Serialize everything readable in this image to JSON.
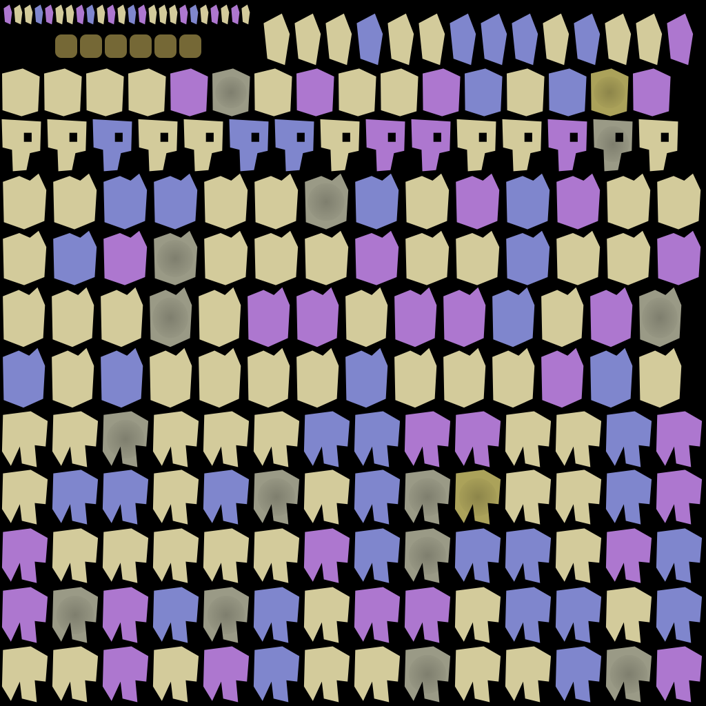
{
  "atlas": {
    "background": "#000000",
    "palette": {
      "beige": "#d3cb9b",
      "blue": "#7f86cd",
      "purple": "#ad77cf",
      "gray": "#9a9a86",
      "olive": "#aba25a",
      "gold": "#8a7a40"
    },
    "legend_swatch_colors": [
      "#7f86cd",
      "#d3cb9b",
      "#ad77cf",
      "#c9b4c8",
      "#7f86cd",
      "#d3cb9b"
    ],
    "blocks": [
      {
        "id": "header-strip",
        "shape": "shard",
        "colors": [
          "purple",
          "beige",
          "beige",
          "blue",
          "purple",
          "beige",
          "beige",
          "purple",
          "blue",
          "beige",
          "purple",
          "beige",
          "blue",
          "purple",
          "beige",
          "beige",
          "beige",
          "purple",
          "blue",
          "beige",
          "purple",
          "beige",
          "purple",
          "beige"
        ]
      },
      {
        "id": "top-right-shards",
        "shape": "shard",
        "colors": [
          "beige",
          "beige",
          "beige",
          "blue",
          "beige",
          "beige",
          "blue",
          "blue",
          "blue",
          "beige",
          "blue",
          "beige",
          "beige",
          "purple"
        ]
      },
      {
        "id": "row-a",
        "shape": "tile",
        "colors": [
          "beige",
          "beige",
          "beige",
          "beige",
          "purple",
          "gray",
          "beige",
          "purple",
          "beige",
          "beige",
          "purple",
          "blue",
          "beige",
          "blue",
          "olive",
          "purple"
        ]
      },
      {
        "id": "row-b",
        "shape": "mask",
        "colors": [
          "beige",
          "beige",
          "blue",
          "beige",
          "beige",
          "blue",
          "blue",
          "beige",
          "purple",
          "purple",
          "beige",
          "beige",
          "purple",
          "gray",
          "beige",
          "beige"
        ]
      },
      {
        "id": "row-c",
        "shape": "head",
        "colors": [
          "beige",
          "beige",
          "blue",
          "blue",
          "beige",
          "beige",
          "gray",
          "blue",
          "beige",
          "purple",
          "blue",
          "purple",
          "beige",
          "beige",
          "purple"
        ]
      },
      {
        "id": "row-d",
        "shape": "head",
        "colors": [
          "beige",
          "blue",
          "purple",
          "gray",
          "beige",
          "beige",
          "beige",
          "purple",
          "beige",
          "beige",
          "blue",
          "beige",
          "beige",
          "purple"
        ]
      },
      {
        "id": "row-e",
        "shape": "head",
        "colors": [
          "beige",
          "beige",
          "beige",
          "gray",
          "beige",
          "purple",
          "purple",
          "beige",
          "purple",
          "purple",
          "blue",
          "beige",
          "purple",
          "gray",
          "purple"
        ]
      },
      {
        "id": "row-f",
        "shape": "head",
        "colors": [
          "blue",
          "beige",
          "blue",
          "beige",
          "beige",
          "beige",
          "beige",
          "blue",
          "beige",
          "beige",
          "beige",
          "purple",
          "blue",
          "beige",
          "purple"
        ]
      },
      {
        "id": "row-g",
        "shape": "hoof",
        "colors": [
          "beige",
          "beige",
          "gray",
          "beige",
          "beige",
          "beige",
          "blue",
          "blue",
          "purple",
          "purple",
          "beige",
          "beige",
          "blue",
          "purple"
        ]
      },
      {
        "id": "row-h",
        "shape": "hoof",
        "colors": [
          "beige",
          "blue",
          "blue",
          "beige",
          "blue",
          "gray",
          "beige",
          "blue",
          "gray",
          "olive",
          "beige",
          "beige",
          "blue",
          "purple"
        ]
      },
      {
        "id": "row-i",
        "shape": "hoof",
        "colors": [
          "purple",
          "beige",
          "beige",
          "beige",
          "beige",
          "beige",
          "purple",
          "blue",
          "gray",
          "blue",
          "blue",
          "beige",
          "purple",
          "blue"
        ]
      },
      {
        "id": "row-j",
        "shape": "hoof",
        "colors": [
          "purple",
          "gray",
          "purple",
          "blue",
          "gray",
          "blue",
          "beige",
          "purple",
          "purple",
          "beige",
          "blue",
          "blue",
          "beige",
          "blue"
        ]
      },
      {
        "id": "row-k",
        "shape": "hoof",
        "colors": [
          "beige",
          "beige",
          "purple",
          "beige",
          "purple",
          "blue",
          "beige",
          "beige",
          "gray",
          "beige",
          "beige",
          "blue",
          "gray",
          "purple"
        ]
      }
    ]
  }
}
